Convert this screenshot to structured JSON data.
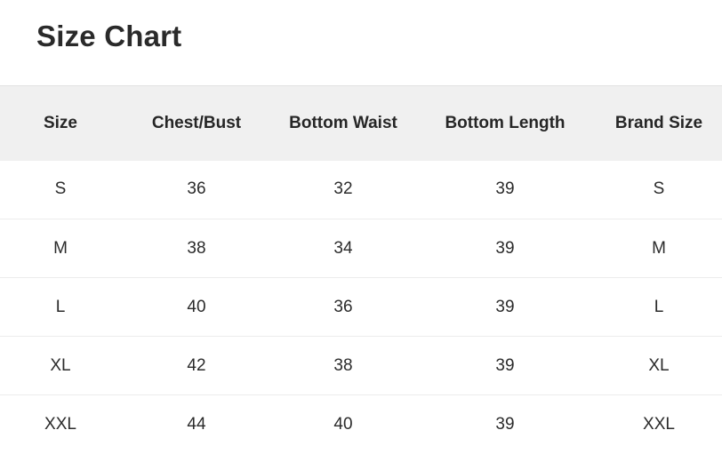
{
  "title": "Size Chart",
  "table": {
    "headers": [
      "Size",
      "Chest/Bust",
      "Bottom Waist",
      "Bottom Length",
      "Brand Size"
    ],
    "rows": [
      [
        "S",
        "36",
        "32",
        "39",
        "S"
      ],
      [
        "M",
        "38",
        "34",
        "39",
        "M"
      ],
      [
        "L",
        "40",
        "36",
        "39",
        "L"
      ],
      [
        "XL",
        "42",
        "38",
        "39",
        "XL"
      ],
      [
        "XXL",
        "44",
        "40",
        "39",
        "XXL"
      ]
    ]
  },
  "colors": {
    "header_bg": "#f0f0f0",
    "text": "#222222",
    "divider": "#ececec"
  }
}
